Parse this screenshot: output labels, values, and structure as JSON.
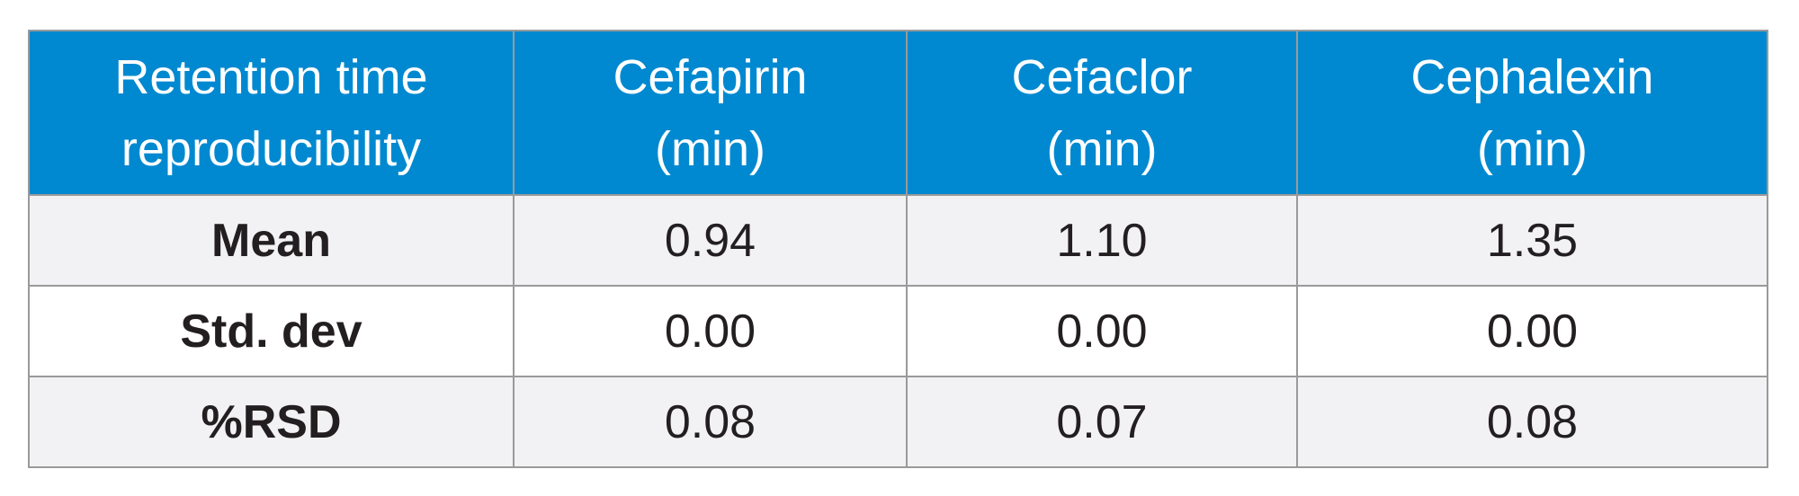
{
  "table": {
    "header": [
      [
        "Retention time",
        "reproducibility"
      ],
      [
        "Cefapirin",
        "(min)"
      ],
      [
        "Cefaclor",
        "(min)"
      ],
      [
        "Cephalexin",
        "(min)"
      ]
    ],
    "rows": [
      [
        "Mean",
        "0.94",
        "1.10",
        "1.35"
      ],
      [
        "Std. dev",
        "0.00",
        "0.00",
        "0.00"
      ],
      [
        "%RSD",
        "0.08",
        "0.07",
        "0.08"
      ]
    ]
  }
}
